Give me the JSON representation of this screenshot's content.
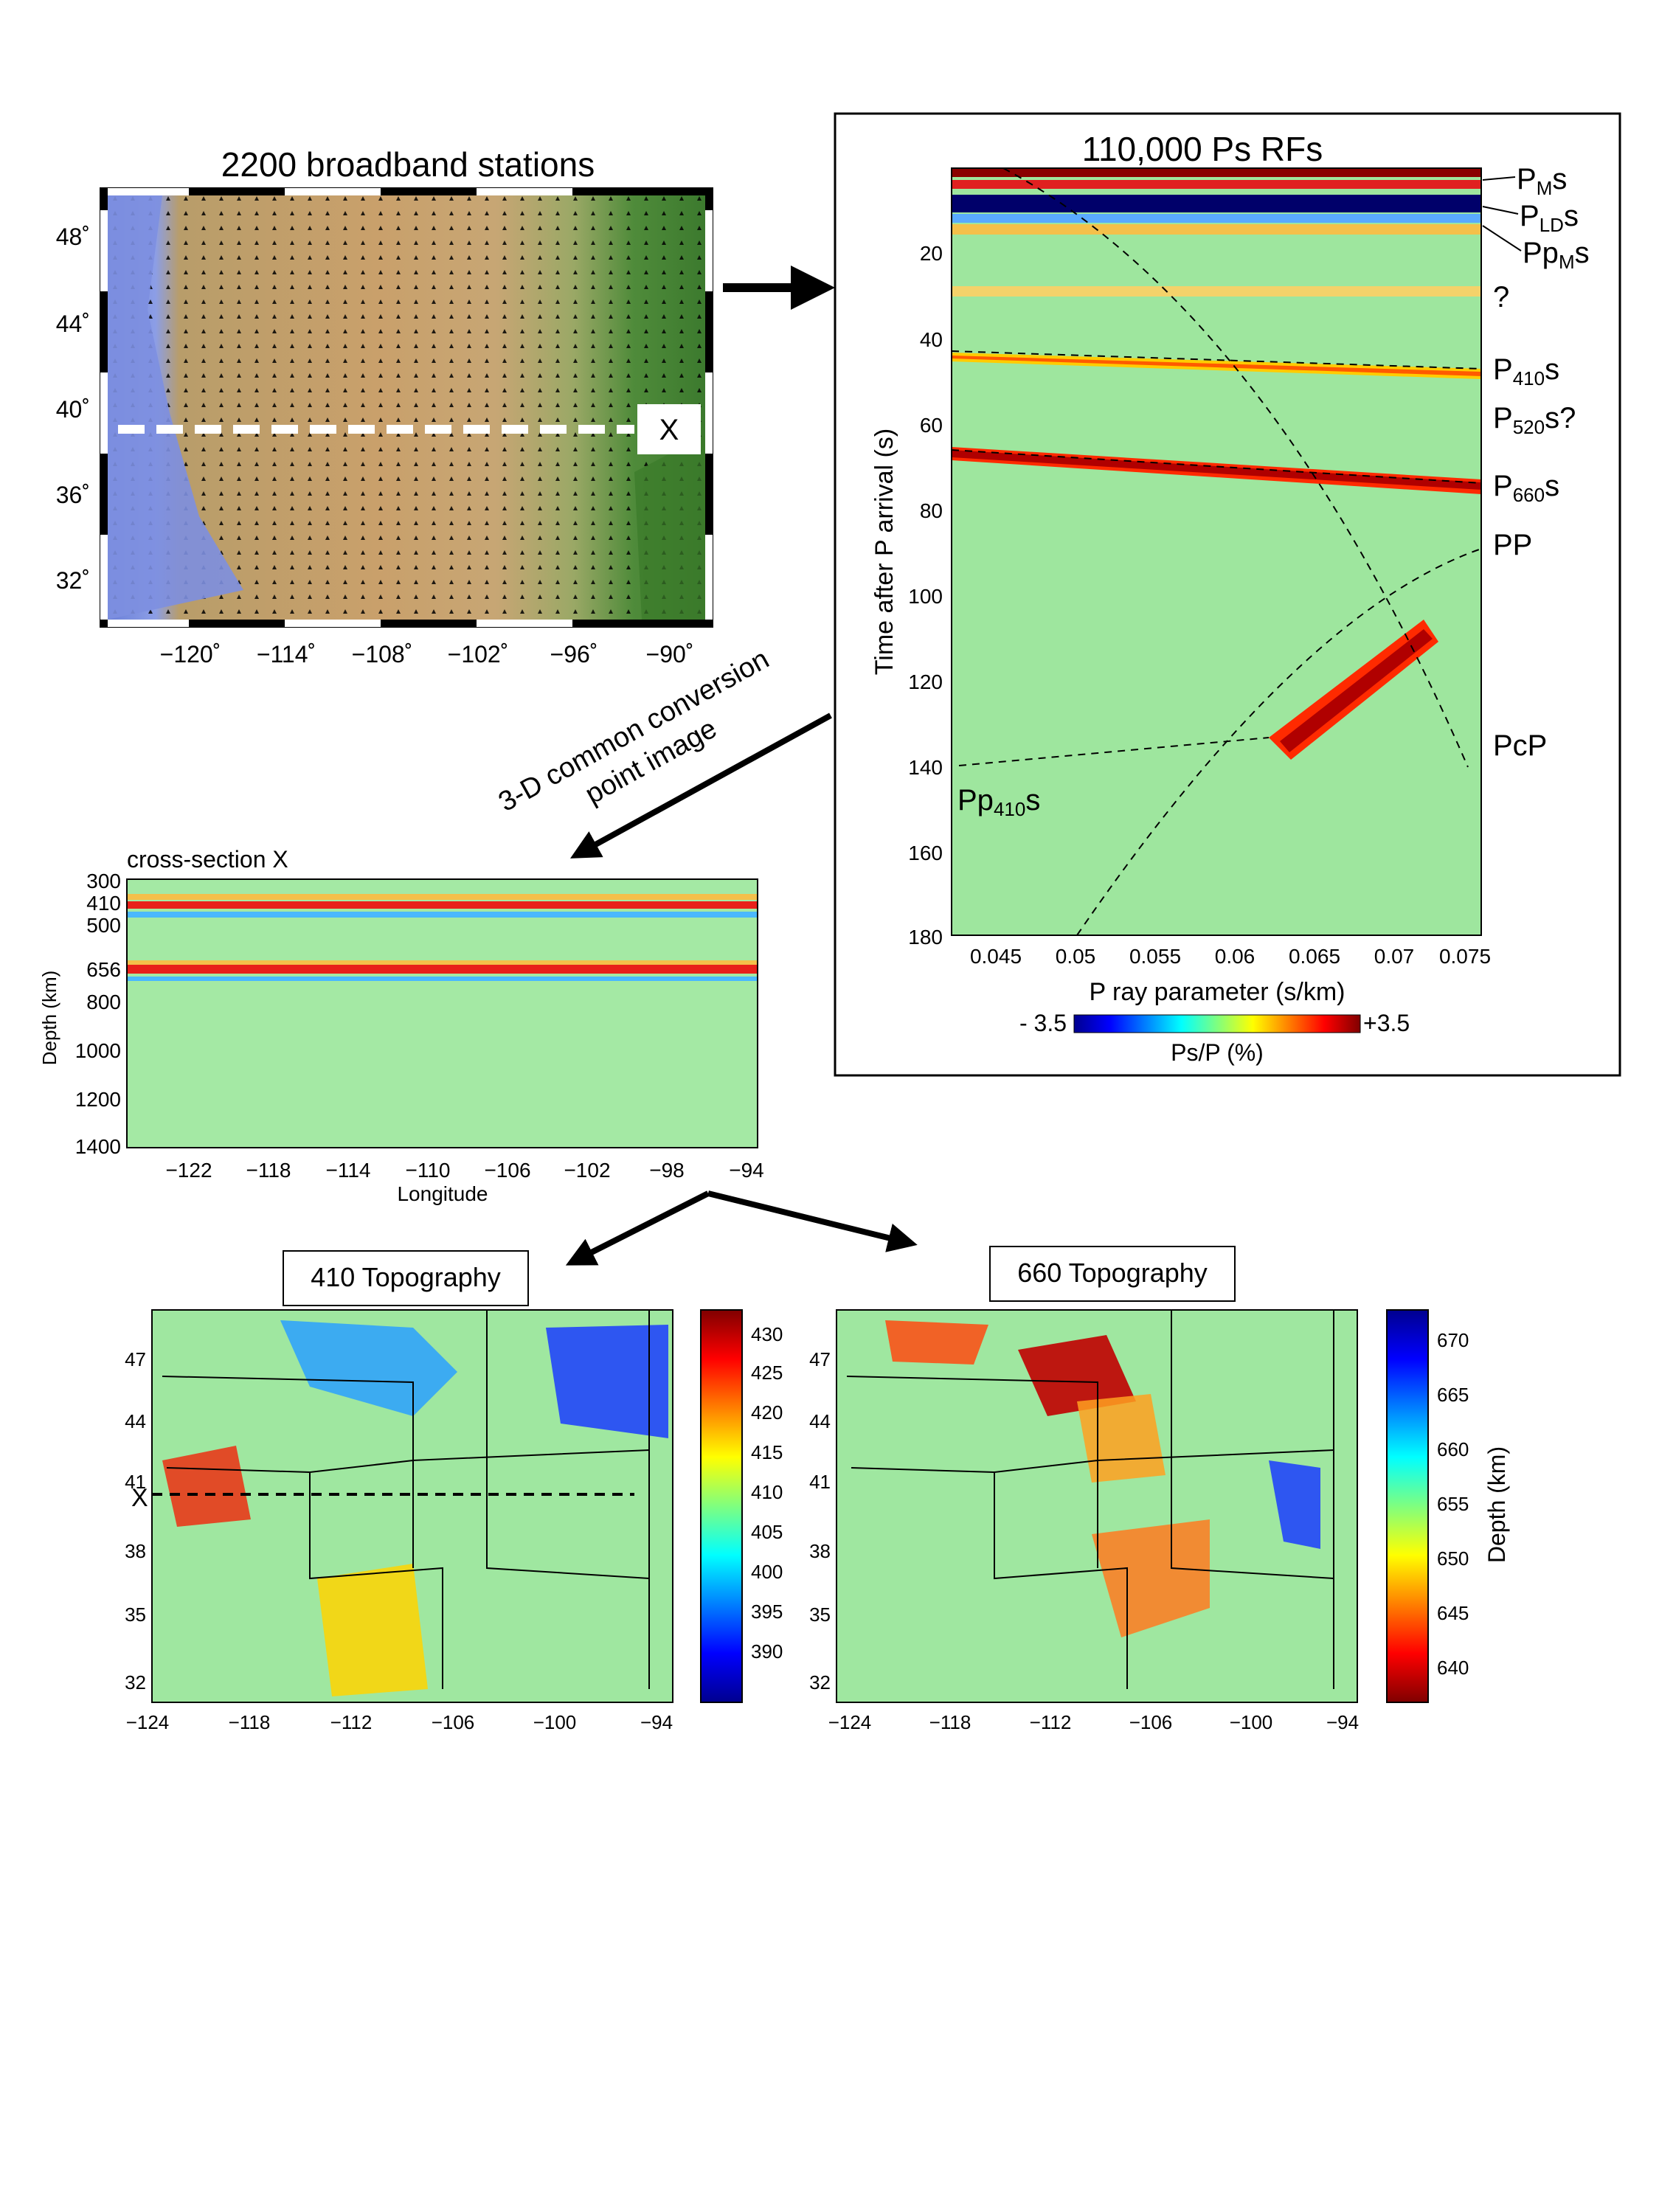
{
  "map_panel": {
    "title": "2200 broadband stations",
    "section_marker": "X",
    "lat_ticks": [
      "48˚",
      "44˚",
      "40˚",
      "36˚",
      "32˚"
    ],
    "lon_ticks": [
      "−120˚",
      "−114˚",
      "−108˚",
      "−102˚",
      "−96˚",
      "−90˚"
    ]
  },
  "rf_panel": {
    "title": "110,000 Ps RFs",
    "ylabel": "Time after P arrival (s)",
    "xlabel": "P ray parameter (s/km)",
    "y_ticks": [
      "20",
      "40",
      "60",
      "80",
      "100",
      "120",
      "140",
      "160",
      "180"
    ],
    "x_ticks": [
      "0.045",
      "0.05",
      "0.055",
      "0.06",
      "0.065",
      "0.07",
      "0.075"
    ],
    "phase_labels": {
      "pms_main": "P",
      "pms_sub": "M",
      "pms_end": "s",
      "plds_main": "P",
      "plds_sub": "LD",
      "plds_end": "s",
      "ppms_main": "Pp",
      "ppms_sub": "M",
      "ppms_end": "s",
      "q": "?",
      "p410_main": "P",
      "p410_sub": "410",
      "p410_end": "s",
      "p520_main": "P",
      "p520_sub": "520",
      "p520_end": "s?",
      "p660_main": "P",
      "p660_sub": "660",
      "p660_end": "s",
      "pp": "PP",
      "pcp": "PcP",
      "pp410_main": "Pp",
      "pp410_sub": "410",
      "pp410_end": "s"
    },
    "colorbar": {
      "min_label": "- 3.5",
      "max_label": "+3.5",
      "label": "Ps/P (%)"
    }
  },
  "ccp_label": {
    "line1": "3-D common conversion",
    "line2": "point image"
  },
  "cross_section": {
    "title": "cross-section X",
    "ylabel": "Depth (km)",
    "xlabel": "Longitude",
    "y_ticks": [
      "300",
      "410",
      "500",
      "656",
      "800",
      "1000",
      "1200",
      "1400"
    ],
    "x_ticks": [
      "−122",
      "−118",
      "−114",
      "−110",
      "−106",
      "−102",
      "−98",
      "−94"
    ]
  },
  "topo410": {
    "title": "410 Topography",
    "section_marker": "X",
    "y_ticks": [
      "47",
      "44",
      "41",
      "38",
      "35",
      "32"
    ],
    "x_ticks": [
      "−124",
      "−118",
      "−112",
      "−106",
      "−100",
      "−94"
    ],
    "cbar_ticks": [
      "430",
      "425",
      "420",
      "415",
      "410",
      "405",
      "400",
      "395",
      "390"
    ]
  },
  "topo660": {
    "title": "660 Topography",
    "y_ticks": [
      "47",
      "44",
      "41",
      "38",
      "35",
      "32"
    ],
    "x_ticks": [
      "−124",
      "−118",
      "−112",
      "−106",
      "−100",
      "−94"
    ],
    "cbar_ticks": [
      "670",
      "665",
      "660",
      "655",
      "650",
      "645",
      "640"
    ],
    "cbar_label": "Depth (km)"
  },
  "colors": {
    "jet_dark_blue": "#00008f",
    "jet_blue": "#0000ff",
    "jet_cyan": "#00ffff",
    "jet_green": "#7fff7f",
    "jet_yellow": "#ffff00",
    "jet_red": "#ff0000",
    "jet_dark_red": "#800000",
    "background_green": "#aee58a"
  }
}
